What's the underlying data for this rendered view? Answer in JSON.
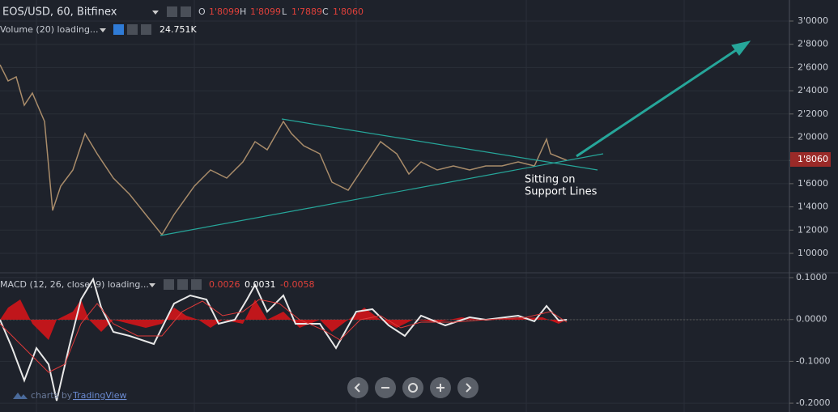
{
  "header": {
    "symbol": "EOS/USD, 60, Bitfinex",
    "o_label": "O",
    "open": "1'8099",
    "h_label": "H",
    "high": "1'8099",
    "l_label": "L",
    "low": "1'7889",
    "c_label": "C",
    "close": "1'8060"
  },
  "volume": {
    "label": "Volume (20) loading...",
    "value": "24.751K"
  },
  "macd": {
    "label": "MACD (12, 26, close, 9) loading...",
    "values": [
      "0.0026",
      "0.0031",
      "-0.0058"
    ]
  },
  "price_axis": [
    "3'0000",
    "2'8000",
    "2'6000",
    "2'4000",
    "2'2000",
    "2'0000",
    "1'8000",
    "1'6000",
    "1'4000",
    "1'2000",
    "1'0000"
  ],
  "last_price": "1'8060",
  "macd_axis": [
    "0.1000",
    "0.0000",
    "-0.1000",
    "-0.2000"
  ],
  "annotation": [
    "Sitting on",
    "Support Lines"
  ],
  "watermark": {
    "prefix": "charts by",
    "brand": "TradingView"
  }
}
